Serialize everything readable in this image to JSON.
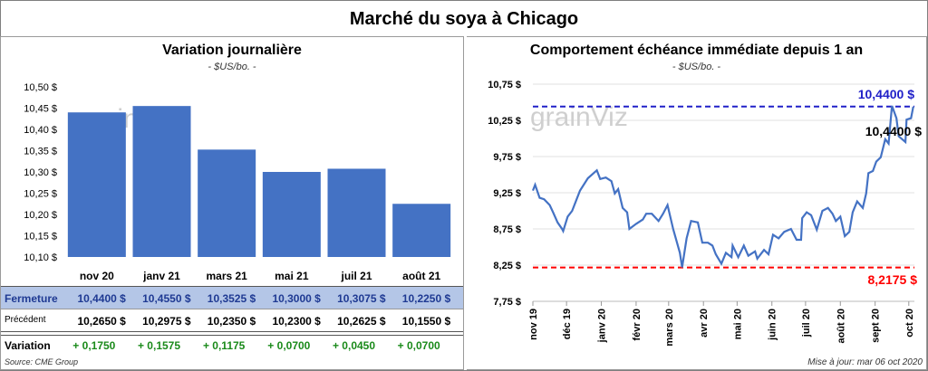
{
  "title": "Marché du soya à Chicago",
  "left": {
    "title": "Variation  journalière",
    "subtitle": "- $US/bo. -",
    "source": "Source: CME Group",
    "table": {
      "row_labels": [
        "Fermeture",
        "Précédent",
        "Variation"
      ],
      "fermeture": [
        "10,4400  $",
        "10,4550  $",
        "10,3525  $",
        "10,3000  $",
        "10,3075  $",
        "10,2250  $"
      ],
      "precedent": [
        "10,2650  $",
        "10,2975  $",
        "10,2350  $",
        "10,2300  $",
        "10,2625  $",
        "10,1550  $"
      ],
      "variation": [
        "+ 0,1750",
        "+ 0,1575",
        "+ 0,1175",
        "+ 0,0700",
        "+ 0,0450",
        "+ 0,0700"
      ]
    }
  },
  "right": {
    "title": "Comportement  échéance immédiate depuis 1 an",
    "subtitle": "- $US/bo. -",
    "updated": "Mise à jour: mar 06 oct 2020"
  },
  "watermark": "grainViz",
  "colors": {
    "bar": "#4472c4",
    "line": "#4472c4",
    "high": "#2020c8",
    "low": "#ff0000",
    "variation": "#1a8a1a",
    "fermeture_bg": "#b4c6e7"
  },
  "chart_data": [
    {
      "type": "bar",
      "categories": [
        "nov 20",
        "janv 21",
        "mars 21",
        "mai 21",
        "juil 21",
        "août 21"
      ],
      "values": [
        10.44,
        10.455,
        10.3525,
        10.3,
        10.3075,
        10.225
      ],
      "ylim": [
        10.1,
        10.5
      ],
      "yticks": [
        "10,10 $",
        "10,15 $",
        "10,20 $",
        "10,25 $",
        "10,30 $",
        "10,35 $",
        "10,40 $",
        "10,45 $",
        "10,50 $"
      ],
      "grid": false
    },
    {
      "type": "line",
      "ylim": [
        7.75,
        10.75
      ],
      "yticks": [
        "7,75 $",
        "8,25 $",
        "8,75 $",
        "9,25 $",
        "9,75 $",
        "10,25 $",
        "10,75 $"
      ],
      "xticks": [
        "nov 19",
        "déc 19",
        "janv 20",
        "févr 20",
        "mars 20",
        "avr 20",
        "mai 20",
        "juin 20",
        "juil 20",
        "août 20",
        "sept 20",
        "oct 20"
      ],
      "xtick_dates": [
        "2019-11-01",
        "2019-12-01",
        "2020-01-01",
        "2020-02-01",
        "2020-03-01",
        "2020-04-01",
        "2020-05-01",
        "2020-06-01",
        "2020-07-01",
        "2020-08-01",
        "2020-09-01",
        "2020-10-01"
      ],
      "grid": true,
      "high": {
        "value": 10.44,
        "label": "10,4400 $"
      },
      "low": {
        "value": 8.2175,
        "label": "8,2175 $"
      },
      "last": {
        "value": 10.44,
        "label": "10,4400 $"
      },
      "points": [
        [
          "2019-11-01",
          9.28
        ],
        [
          "2019-11-03",
          9.36
        ],
        [
          "2019-11-07",
          9.18
        ],
        [
          "2019-11-11",
          9.16
        ],
        [
          "2019-11-16",
          9.08
        ],
        [
          "2019-11-19",
          8.98
        ],
        [
          "2019-11-23",
          8.84
        ],
        [
          "2019-11-27",
          8.75
        ],
        [
          "2019-11-28",
          8.72
        ],
        [
          "2019-12-02",
          8.92
        ],
        [
          "2019-12-06",
          9.0
        ],
        [
          "2019-12-13",
          9.28
        ],
        [
          "2019-12-20",
          9.45
        ],
        [
          "2019-12-28",
          9.56
        ],
        [
          "2019-12-31",
          9.44
        ],
        [
          "2020-01-05",
          9.46
        ],
        [
          "2020-01-10",
          9.41
        ],
        [
          "2020-01-13",
          9.24
        ],
        [
          "2020-01-16",
          9.3
        ],
        [
          "2020-01-20",
          9.04
        ],
        [
          "2020-01-24",
          8.98
        ],
        [
          "2020-01-26",
          8.75
        ],
        [
          "2020-02-01",
          8.82
        ],
        [
          "2020-02-07",
          8.88
        ],
        [
          "2020-02-10",
          8.96
        ],
        [
          "2020-02-15",
          8.96
        ],
        [
          "2020-02-21",
          8.86
        ],
        [
          "2020-02-25",
          8.96
        ],
        [
          "2020-02-29",
          9.08
        ],
        [
          "2020-03-05",
          8.75
        ],
        [
          "2020-03-11",
          8.42
        ],
        [
          "2020-03-13",
          8.22
        ],
        [
          "2020-03-17",
          8.62
        ],
        [
          "2020-03-21",
          8.86
        ],
        [
          "2020-03-27",
          8.84
        ],
        [
          "2020-03-31",
          8.56
        ],
        [
          "2020-04-05",
          8.56
        ],
        [
          "2020-04-09",
          8.52
        ],
        [
          "2020-04-12",
          8.4
        ],
        [
          "2020-04-17",
          8.27
        ],
        [
          "2020-04-21",
          8.42
        ],
        [
          "2020-04-26",
          8.36
        ],
        [
          "2020-04-27",
          8.52
        ],
        [
          "2020-05-02",
          8.36
        ],
        [
          "2020-05-07",
          8.52
        ],
        [
          "2020-05-11",
          8.38
        ],
        [
          "2020-05-17",
          8.44
        ],
        [
          "2020-05-19",
          8.34
        ],
        [
          "2020-05-25",
          8.46
        ],
        [
          "2020-05-29",
          8.4
        ],
        [
          "2020-06-02",
          8.67
        ],
        [
          "2020-06-07",
          8.62
        ],
        [
          "2020-06-12",
          8.71
        ],
        [
          "2020-06-18",
          8.75
        ],
        [
          "2020-06-23",
          8.6
        ],
        [
          "2020-06-27",
          8.6
        ],
        [
          "2020-06-28",
          8.9
        ],
        [
          "2020-07-02",
          8.98
        ],
        [
          "2020-07-06",
          8.94
        ],
        [
          "2020-07-11",
          8.74
        ],
        [
          "2020-07-16",
          9.0
        ],
        [
          "2020-07-21",
          9.04
        ],
        [
          "2020-07-25",
          8.96
        ],
        [
          "2020-07-28",
          8.86
        ],
        [
          "2020-08-01",
          8.92
        ],
        [
          "2020-08-05",
          8.65
        ],
        [
          "2020-08-09",
          8.71
        ],
        [
          "2020-08-12",
          8.98
        ],
        [
          "2020-08-16",
          9.13
        ],
        [
          "2020-08-21",
          9.04
        ],
        [
          "2020-08-24",
          9.24
        ],
        [
          "2020-08-26",
          9.52
        ],
        [
          "2020-08-30",
          9.55
        ],
        [
          "2020-09-02",
          9.68
        ],
        [
          "2020-09-06",
          9.74
        ],
        [
          "2020-09-10",
          9.99
        ],
        [
          "2020-09-13",
          9.93
        ],
        [
          "2020-09-16",
          10.45
        ],
        [
          "2020-09-20",
          10.28
        ],
        [
          "2020-09-22",
          10.03
        ],
        [
          "2020-09-28",
          9.95
        ],
        [
          "2020-09-29",
          10.26
        ],
        [
          "2020-10-03",
          10.28
        ],
        [
          "2020-10-05",
          10.44
        ]
      ]
    }
  ]
}
